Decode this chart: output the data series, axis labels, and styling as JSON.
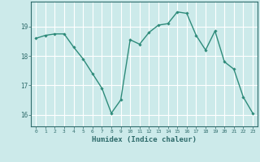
{
  "x": [
    0,
    1,
    2,
    3,
    4,
    5,
    6,
    7,
    8,
    9,
    10,
    11,
    12,
    13,
    14,
    15,
    16,
    17,
    18,
    19,
    20,
    21,
    22,
    23
  ],
  "y": [
    18.6,
    18.7,
    18.75,
    18.75,
    18.3,
    17.9,
    17.4,
    16.9,
    16.05,
    16.5,
    18.55,
    18.4,
    18.8,
    19.05,
    19.1,
    19.5,
    19.45,
    18.7,
    18.2,
    18.85,
    17.8,
    17.55,
    16.6,
    16.05
  ],
  "line_color": "#2e8b7a",
  "marker": "D",
  "marker_size": 1.8,
  "linewidth": 1.0,
  "bg_color": "#cceaea",
  "grid_color": "#ffffff",
  "axis_color": "#2e6b6b",
  "tick_color": "#2e6b6b",
  "xlabel": "Humidex (Indice chaleur)",
  "xlabel_fontsize": 6.5,
  "ylabel_ticks": [
    16,
    17,
    18,
    19
  ],
  "xlim": [
    -0.5,
    23.5
  ],
  "ylim": [
    15.6,
    19.85
  ]
}
